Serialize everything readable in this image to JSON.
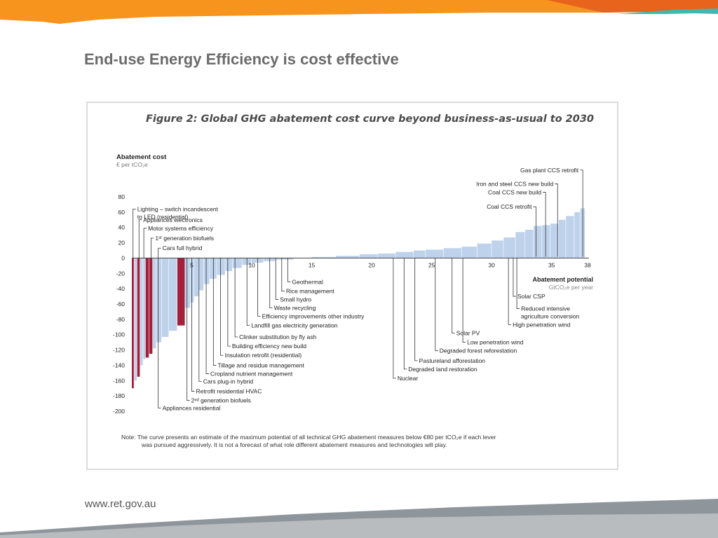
{
  "slide": {
    "title": "End-use Energy Efficiency is cost effective",
    "footer_url": "www.ret.gov.au"
  },
  "figure": {
    "title": "Figure 2: Global GHG abatement cost curve beyond business-as-usual to 2030",
    "note_line1": "Note: The curve presents an estimate of the maximum potential of all technical GHG abatement measures below €80 per tCO₂e if each lever",
    "note_line2": "was pursued aggressively. It is not a forecast of what role different abatement measures and technologies will play."
  },
  "colors": {
    "header_orange": "#f7941d",
    "header_dark_orange": "#e8641c",
    "header_teal": "#3fb8b0",
    "footer_gray": "#8f969b",
    "bar_blue": "#bfd2ec",
    "bar_highlight": "#a51e3a"
  },
  "chart_data": {
    "type": "bar",
    "variant": "marginal-abatement-cost-curve",
    "y_title": "Abatement cost",
    "y_unit": "€ per tCO₂e",
    "x_title": "Abatement potential",
    "x_unit": "GtCO₂e per year",
    "ylim": [
      -200,
      80
    ],
    "xlim": [
      0,
      38
    ],
    "y_ticks": [
      80,
      60,
      40,
      20,
      0,
      -20,
      -40,
      -60,
      -80,
      -100,
      -120,
      -140,
      -160,
      -180,
      -200
    ],
    "x_ticks": [
      5,
      10,
      15,
      20,
      25,
      30,
      35,
      38
    ],
    "bars_note": "approximate values read from the curve; x0/x1 = cumulative abatement potential (GtCO2e/yr), value = cost (€/tCO2e)",
    "bars": [
      {
        "x0": 0.0,
        "x1": 0.2,
        "value": -170,
        "highlight": true
      },
      {
        "x0": 0.2,
        "x1": 0.45,
        "value": -160,
        "highlight": false
      },
      {
        "x0": 0.45,
        "x1": 0.7,
        "value": -155,
        "highlight": true
      },
      {
        "x0": 0.7,
        "x1": 0.95,
        "value": -140,
        "highlight": false
      },
      {
        "x0": 0.95,
        "x1": 1.15,
        "value": -132,
        "highlight": false
      },
      {
        "x0": 1.15,
        "x1": 1.45,
        "value": -130,
        "highlight": true
      },
      {
        "x0": 1.45,
        "x1": 1.75,
        "value": -125,
        "highlight": true
      },
      {
        "x0": 1.75,
        "x1": 2.05,
        "value": -118,
        "highlight": false
      },
      {
        "x0": 2.05,
        "x1": 2.5,
        "value": -110,
        "highlight": false
      },
      {
        "x0": 2.5,
        "x1": 3.1,
        "value": -103,
        "highlight": false
      },
      {
        "x0": 3.1,
        "x1": 3.8,
        "value": -95,
        "highlight": false
      },
      {
        "x0": 3.8,
        "x1": 4.45,
        "value": -88,
        "highlight": true
      },
      {
        "x0": 4.45,
        "x1": 4.9,
        "value": -65,
        "highlight": false
      },
      {
        "x0": 4.9,
        "x1": 5.2,
        "value": -58,
        "highlight": false
      },
      {
        "x0": 5.2,
        "x1": 5.6,
        "value": -50,
        "highlight": false
      },
      {
        "x0": 5.6,
        "x1": 6.0,
        "value": -42,
        "highlight": false
      },
      {
        "x0": 6.0,
        "x1": 6.5,
        "value": -34,
        "highlight": false
      },
      {
        "x0": 6.5,
        "x1": 7.1,
        "value": -27,
        "highlight": false
      },
      {
        "x0": 7.1,
        "x1": 7.8,
        "value": -22,
        "highlight": false
      },
      {
        "x0": 7.8,
        "x1": 8.4,
        "value": -17,
        "highlight": false
      },
      {
        "x0": 8.4,
        "x1": 9.2,
        "value": -13,
        "highlight": false
      },
      {
        "x0": 9.2,
        "x1": 10.0,
        "value": -9,
        "highlight": false
      },
      {
        "x0": 10.0,
        "x1": 11.0,
        "value": -6,
        "highlight": false
      },
      {
        "x0": 11.0,
        "x1": 12.0,
        "value": -4,
        "highlight": false
      },
      {
        "x0": 12.0,
        "x1": 13.5,
        "value": -2,
        "highlight": false
      },
      {
        "x0": 13.5,
        "x1": 15.0,
        "value": 0.5,
        "highlight": false
      },
      {
        "x0": 15.0,
        "x1": 17.0,
        "value": 1.5,
        "highlight": false
      },
      {
        "x0": 17.0,
        "x1": 19.0,
        "value": 3,
        "highlight": false
      },
      {
        "x0": 19.0,
        "x1": 20.5,
        "value": 5,
        "highlight": false
      },
      {
        "x0": 20.5,
        "x1": 22.0,
        "value": 6,
        "highlight": false
      },
      {
        "x0": 22.0,
        "x1": 23.5,
        "value": 8,
        "highlight": false
      },
      {
        "x0": 23.5,
        "x1": 24.5,
        "value": 10,
        "highlight": false
      },
      {
        "x0": 24.5,
        "x1": 26.0,
        "value": 11,
        "highlight": false
      },
      {
        "x0": 26.0,
        "x1": 27.5,
        "value": 13,
        "highlight": false
      },
      {
        "x0": 27.5,
        "x1": 28.8,
        "value": 15,
        "highlight": false
      },
      {
        "x0": 28.8,
        "x1": 30.0,
        "value": 19,
        "highlight": false
      },
      {
        "x0": 30.0,
        "x1": 31.0,
        "value": 23,
        "highlight": false
      },
      {
        "x0": 31.0,
        "x1": 32.0,
        "value": 27,
        "highlight": false
      },
      {
        "x0": 32.0,
        "x1": 32.8,
        "value": 34,
        "highlight": false
      },
      {
        "x0": 32.8,
        "x1": 33.5,
        "value": 37,
        "highlight": false
      },
      {
        "x0": 33.5,
        "x1": 34.2,
        "value": 42,
        "highlight": false
      },
      {
        "x0": 34.2,
        "x1": 34.9,
        "value": 43,
        "highlight": false
      },
      {
        "x0": 34.9,
        "x1": 35.6,
        "value": 45,
        "highlight": false
      },
      {
        "x0": 35.6,
        "x1": 36.2,
        "value": 50,
        "highlight": false
      },
      {
        "x0": 36.2,
        "x1": 36.9,
        "value": 55,
        "highlight": false
      },
      {
        "x0": 36.9,
        "x1": 37.4,
        "value": 60,
        "highlight": false
      },
      {
        "x0": 37.4,
        "x1": 37.8,
        "value": 65,
        "highlight": false
      }
    ],
    "annotations": [
      {
        "lines": [
          "Lighting – switch incandescent",
          "to LED (residential)"
        ],
        "x": 0.1,
        "value": 64,
        "side": "left-top"
      },
      {
        "lines": [
          "Appliances electronics"
        ],
        "x": 0.6,
        "value": 50,
        "side": "left-top"
      },
      {
        "lines": [
          "Motor systems efficiency"
        ],
        "x": 1.0,
        "value": 39,
        "side": "left-top"
      },
      {
        "lines": [
          "1ˢᵗ generation biofuels"
        ],
        "x": 1.6,
        "value": 26,
        "side": "left-top"
      },
      {
        "lines": [
          "Cars full hybrid"
        ],
        "x": 2.2,
        "value": 13,
        "side": "left-top"
      },
      {
        "lines": [
          "Geothermal"
        ],
        "x": 13.0,
        "value": -31,
        "side": "bottom"
      },
      {
        "lines": [
          "Rice management"
        ],
        "x": 12.5,
        "value": -43,
        "side": "bottom"
      },
      {
        "lines": [
          "Small hydro"
        ],
        "x": 12.0,
        "value": -54,
        "side": "bottom"
      },
      {
        "lines": [
          "Waste recycling"
        ],
        "x": 11.5,
        "value": -65,
        "side": "bottom"
      },
      {
        "lines": [
          "Efficiency improvements other industry"
        ],
        "x": 10.5,
        "value": -76,
        "side": "bottom"
      },
      {
        "lines": [
          "Landfill gas electricity generation"
        ],
        "x": 9.6,
        "value": -88,
        "side": "bottom"
      },
      {
        "lines": [
          "Clinker substitution by fly ash"
        ],
        "x": 8.6,
        "value": -103,
        "side": "bottom"
      },
      {
        "lines": [
          "Building efficiency new build"
        ],
        "x": 8.0,
        "value": -115,
        "side": "bottom"
      },
      {
        "lines": [
          "Insulation retrofit (residential)"
        ],
        "x": 7.4,
        "value": -127,
        "side": "bottom"
      },
      {
        "lines": [
          "Tillage and residue management"
        ],
        "x": 6.8,
        "value": -140,
        "side": "bottom"
      },
      {
        "lines": [
          "Cropland nutrient management"
        ],
        "x": 6.2,
        "value": -151,
        "side": "bottom"
      },
      {
        "lines": [
          "Cars plug-in hybrid"
        ],
        "x": 5.6,
        "value": -161,
        "side": "bottom"
      },
      {
        "lines": [
          "Retrofit residential HVAC"
        ],
        "x": 5.0,
        "value": -174,
        "side": "bottom"
      },
      {
        "lines": [
          "2ⁿᵈ generation biofuels"
        ],
        "x": 4.6,
        "value": -186,
        "side": "bottom"
      },
      {
        "lines": [
          "Appliances residential"
        ],
        "x": 2.2,
        "value": -196,
        "side": "bottom"
      },
      {
        "lines": [
          "Nuclear"
        ],
        "x": 21.8,
        "value": -157,
        "side": "bottom"
      },
      {
        "lines": [
          "Degraded land restoration"
        ],
        "x": 22.7,
        "value": -145,
        "side": "bottom"
      },
      {
        "lines": [
          "Pastureland afforestation"
        ],
        "x": 23.6,
        "value": -134,
        "side": "bottom"
      },
      {
        "lines": [
          "Degraded forest reforestation"
        ],
        "x": 25.3,
        "value": -121,
        "side": "bottom"
      },
      {
        "lines": [
          "Low penetration wind"
        ],
        "x": 27.6,
        "value": -110,
        "side": "bottom"
      },
      {
        "lines": [
          "Solar PV"
        ],
        "x": 26.7,
        "value": -98,
        "side": "bottom"
      },
      {
        "lines": [
          "High penetration wind"
        ],
        "x": 31.4,
        "value": -87,
        "side": "bottom"
      },
      {
        "lines": [
          "Reduced intensive",
          "agriculture conversion"
        ],
        "x": 32.1,
        "value": -66,
        "side": "bottom"
      },
      {
        "lines": [
          "Solar CSP"
        ],
        "x": 31.8,
        "value": -50,
        "side": "bottom"
      },
      {
        "lines": [
          "Coal CCS retrofit"
        ],
        "x": 33.7,
        "value": 67,
        "side": "top"
      },
      {
        "lines": [
          "Coal CCS new build"
        ],
        "x": 34.5,
        "value": 86,
        "side": "top"
      },
      {
        "lines": [
          "Iron and steel CCS new build"
        ],
        "x": 35.5,
        "value": 97,
        "side": "top"
      },
      {
        "lines": [
          "Gas plant CCS retrofit"
        ],
        "x": 37.6,
        "value": 115,
        "side": "top"
      }
    ]
  }
}
